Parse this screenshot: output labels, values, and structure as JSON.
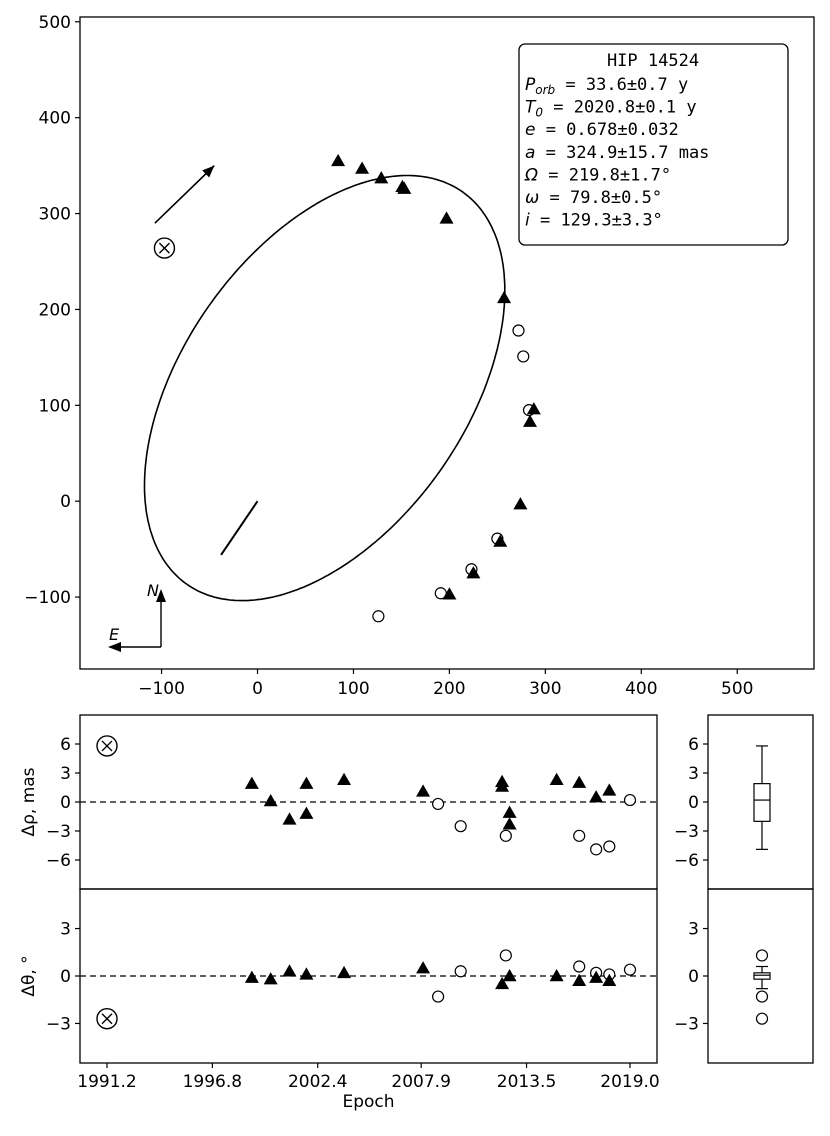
{
  "chart_data": [
    {
      "panel": "orbit",
      "type": "scatter",
      "xlim": [
        -185,
        580
      ],
      "ylim": [
        -175,
        505
      ],
      "xticks": [
        -100,
        0,
        100,
        200,
        300,
        400,
        500
      ],
      "yticks": [
        -100,
        0,
        100,
        200,
        300,
        400,
        500
      ],
      "xtick_labels": [
        "−100",
        "0",
        "100",
        "200",
        "300",
        "400",
        "500"
      ],
      "ytick_labels": [
        "−100",
        "0",
        "100",
        "200",
        "300",
        "400",
        "500"
      ],
      "info_box": {
        "title": "HIP 14524",
        "rows": [
          {
            "sym": "P",
            "sub": "orb",
            "text": " = 33.6±0.7 y"
          },
          {
            "sym": "T",
            "sub": "0",
            "text": "  = 2020.8±0.1 y"
          },
          {
            "sym": "e",
            "sub": "",
            "text": "   = 0.678±0.032"
          },
          {
            "sym": "a",
            "sub": "",
            "text": "   = 324.9±15.7 mas"
          },
          {
            "sym": "Ω",
            "sub": "",
            "text": "   = 219.8±1.7°"
          },
          {
            "sym": "ω",
            "sub": "",
            "text": "   = 79.8±0.5°"
          },
          {
            "sym": "i",
            "sub": "",
            "text": "   = 129.3±3.3°"
          }
        ]
      },
      "compass": {
        "north": "N",
        "east": "E"
      },
      "orbit_ellipse": {
        "center": [
          70,
          118
        ],
        "semi_major": 250,
        "semi_minor": 148,
        "rotation_deg": 55
      },
      "triangles": [
        [
          84,
          355
        ],
        [
          109,
          347
        ],
        [
          129,
          337
        ],
        [
          151,
          328
        ],
        [
          153,
          326
        ],
        [
          197,
          295
        ],
        [
          257,
          212
        ],
        [
          288,
          96
        ],
        [
          284,
          83
        ],
        [
          274,
          -3
        ],
        [
          253,
          -42
        ],
        [
          225,
          -75
        ],
        [
          200,
          -97
        ]
      ],
      "circles": [
        [
          272,
          178
        ],
        [
          277,
          151
        ],
        [
          283,
          95
        ],
        [
          250,
          -39
        ],
        [
          223,
          -71
        ],
        [
          191,
          -96
        ],
        [
          126,
          -120
        ]
      ],
      "first_epoch_marker": [
        -97,
        264
      ],
      "direction_arrow": {
        "from": [
          -107,
          290
        ],
        "to": [
          -45,
          350
        ]
      },
      "periastron_line": {
        "from": [
          0,
          0
        ],
        "to": [
          -38,
          -56
        ]
      }
    },
    {
      "panel": "delta_rho",
      "type": "scatter",
      "ylabel": "Δρ, mas",
      "xlim": [
        1991.2,
        2019.0
      ],
      "ylim": [
        -9,
        9
      ],
      "yticks": [
        -6,
        -3,
        0,
        3,
        6
      ],
      "ytick_labels": [
        "−6",
        "−3",
        "0",
        "3",
        "6"
      ],
      "triangles": [
        [
          1998.9,
          1.9
        ],
        [
          1999.9,
          0.1
        ],
        [
          2000.9,
          -1.8
        ],
        [
          2001.8,
          1.9
        ],
        [
          2001.8,
          -1.2
        ],
        [
          2003.8,
          2.3
        ],
        [
          2008.0,
          1.1
        ],
        [
          2012.2,
          2.1
        ],
        [
          2012.2,
          1.6
        ],
        [
          2012.6,
          -1.1
        ],
        [
          2012.6,
          -2.3
        ],
        [
          2015.1,
          2.3
        ],
        [
          2016.3,
          2.0
        ],
        [
          2017.2,
          0.5
        ],
        [
          2017.9,
          1.2
        ]
      ],
      "circles": [
        [
          2008.8,
          -0.2
        ],
        [
          2010.0,
          -2.5
        ],
        [
          2012.4,
          -3.5
        ],
        [
          2016.3,
          -3.5
        ],
        [
          2017.2,
          -4.9
        ],
        [
          2017.9,
          -4.6
        ],
        [
          2019.0,
          0.2
        ]
      ],
      "first_epoch_marker": [
        1991.2,
        5.8
      ],
      "box": {
        "min": -4.9,
        "q1": -2.0,
        "median": 0.2,
        "q3": 1.9,
        "max": 5.8
      }
    },
    {
      "panel": "delta_theta",
      "type": "scatter",
      "ylabel": "Δθ, °",
      "xlabel": "Epoch",
      "xlim": [
        1991.2,
        2019.0
      ],
      "ylim": [
        -5.5,
        5.5
      ],
      "xticks": [
        1991.2,
        1996.8,
        2002.4,
        2007.9,
        2013.5,
        2019.0
      ],
      "xtick_labels": [
        "1991.2",
        "1996.8",
        "2002.4",
        "2007.9",
        "2013.5",
        "2019.0"
      ],
      "yticks": [
        -3,
        0,
        3
      ],
      "ytick_labels": [
        "−3",
        "0",
        "3"
      ],
      "triangles": [
        [
          1998.9,
          -0.1
        ],
        [
          1999.9,
          -0.2
        ],
        [
          2000.9,
          0.3
        ],
        [
          2001.8,
          0.1
        ],
        [
          2003.8,
          0.2
        ],
        [
          2008.0,
          0.5
        ],
        [
          2012.2,
          -0.5
        ],
        [
          2012.6,
          0.0
        ],
        [
          2015.1,
          0.0
        ],
        [
          2016.3,
          -0.3
        ],
        [
          2017.2,
          -0.1
        ],
        [
          2017.9,
          -0.3
        ]
      ],
      "circles": [
        [
          2008.8,
          -1.3
        ],
        [
          2010.0,
          0.3
        ],
        [
          2012.4,
          1.3
        ],
        [
          2016.3,
          0.6
        ],
        [
          2017.2,
          0.2
        ],
        [
          2017.9,
          0.1
        ],
        [
          2019.0,
          0.4
        ]
      ],
      "first_epoch_marker": [
        1991.2,
        -2.7
      ],
      "box": {
        "min": -0.8,
        "q1": -0.2,
        "median": 0.05,
        "q3": 0.2,
        "max": 0.6
      },
      "box_outliers": [
        1.3,
        -1.3,
        -2.7
      ]
    }
  ]
}
